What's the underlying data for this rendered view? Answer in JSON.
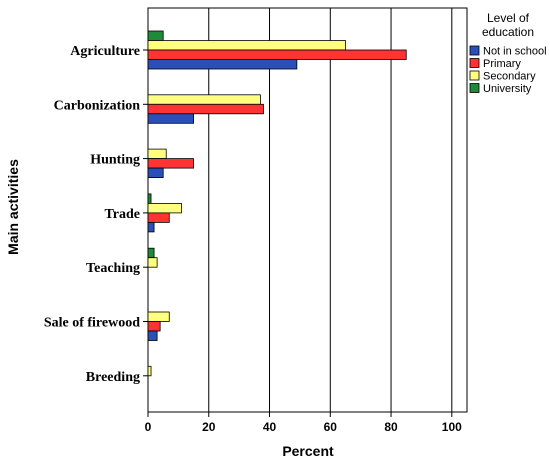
{
  "chart_data": {
    "type": "bar",
    "orientation": "horizontal",
    "categories": [
      "Agriculture",
      "Carbonization",
      "Hunting",
      "Trade",
      "Teaching",
      "Sale of firewood",
      "Breeding"
    ],
    "series": [
      {
        "name": "University",
        "color": "#1e8a3a",
        "values": [
          5,
          0,
          0,
          1,
          2,
          0,
          0
        ]
      },
      {
        "name": "Secondary",
        "color": "#ffff7f",
        "values": [
          65,
          37,
          6,
          11,
          3,
          7,
          1
        ]
      },
      {
        "name": "Primary",
        "color": "#ff3333",
        "values": [
          85,
          38,
          15,
          7,
          0,
          4,
          0
        ]
      },
      {
        "name": "Not in school",
        "color": "#2b4fb8",
        "values": [
          49,
          15,
          5,
          2,
          0,
          3,
          0
        ]
      }
    ],
    "xlabel": "Percent",
    "ylabel": "Main activities",
    "xlim": [
      0,
      105
    ],
    "xticks": [
      0,
      20,
      40,
      60,
      80,
      100
    ],
    "grid": "vertical",
    "legend": {
      "title": "Level of education",
      "title_lines": [
        "Level of",
        "education"
      ],
      "position": "right",
      "entries": [
        "Not in school",
        "Primary",
        "Secondary",
        "University"
      ]
    }
  }
}
